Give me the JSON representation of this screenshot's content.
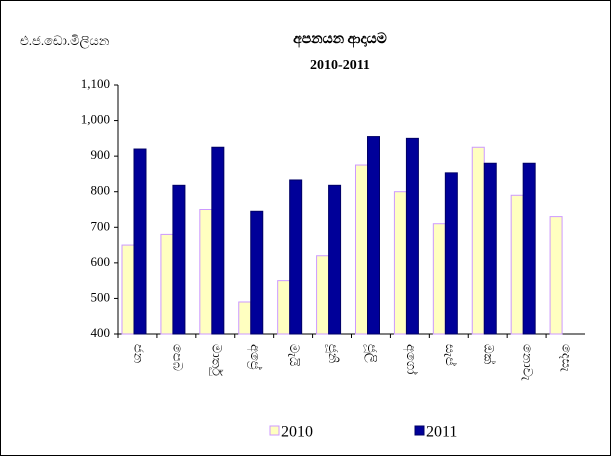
{
  "chart_data": {
    "type": "bar",
    "title": "අපනයන ආදායම",
    "subtitle": "2010-2011",
    "ylabel": "එ.ජ.ඩො.මිලියන",
    "categories": [
      "ජන",
      "පෙබ",
      "මාර්තු",
      "අප්‍රේ",
      "මැයි",
      "ජූනි",
      "ජූලි",
      "අගෝ",
      "සැප්",
      "ඔක්",
      "නොවැ",
      "දෙසැ"
    ],
    "series": [
      {
        "name": "2010",
        "color": "#ffffc0",
        "edge": "#cc99ff",
        "values": [
          650,
          680,
          750,
          490,
          550,
          620,
          875,
          800,
          710,
          925,
          790,
          730
        ]
      },
      {
        "name": "2011",
        "color": "#000099",
        "edge": "#000066",
        "values": [
          920,
          818,
          925,
          745,
          833,
          818,
          955,
          950,
          853,
          880,
          880,
          null
        ]
      }
    ],
    "ylim": [
      400,
      1100
    ],
    "yticks": [
      400,
      500,
      600,
      700,
      800,
      900,
      {
        "value": 1000,
        "label": "1,000"
      },
      {
        "value": 1100,
        "label": "1,100"
      }
    ]
  }
}
